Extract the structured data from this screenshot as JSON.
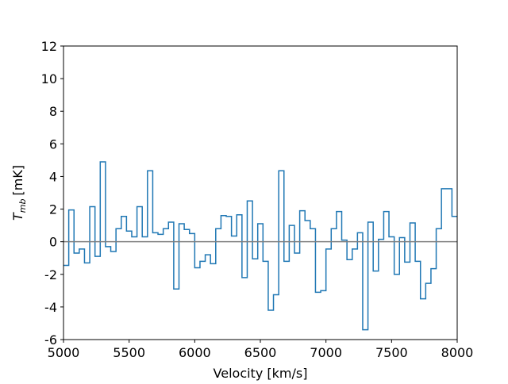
{
  "chart_data": {
    "type": "step",
    "xlabel": "Velocity [km/s]",
    "ylabel": {
      "symbol": "T",
      "subscript": "mb",
      "unit": "[mK]"
    },
    "xlim": [
      5000,
      8000
    ],
    "ylim": [
      -6,
      12
    ],
    "xticks": [
      5000,
      5500,
      6000,
      6500,
      7000,
      7500,
      8000
    ],
    "yticks": [
      -6,
      -4,
      -2,
      0,
      2,
      4,
      6,
      8,
      10,
      12
    ],
    "hline": {
      "value": 0,
      "color": "#808080"
    },
    "x": [
      5000,
      5040,
      5080,
      5120,
      5160,
      5200,
      5240,
      5280,
      5320,
      5360,
      5400,
      5440,
      5480,
      5520,
      5560,
      5600,
      5640,
      5680,
      5720,
      5760,
      5800,
      5840,
      5880,
      5920,
      5960,
      6000,
      6040,
      6080,
      6120,
      6160,
      6200,
      6240,
      6280,
      6320,
      6360,
      6400,
      6440,
      6480,
      6520,
      6560,
      6600,
      6640,
      6680,
      6720,
      6760,
      6800,
      6840,
      6880,
      6920,
      6960,
      7000,
      7040,
      7080,
      7120,
      7160,
      7200,
      7240,
      7280,
      7320,
      7360,
      7400,
      7440,
      7480,
      7520,
      7560,
      7600,
      7640,
      7680,
      7720,
      7760,
      7800,
      7840,
      7880,
      7920,
      7960
    ],
    "series": [
      {
        "color": "#1f77b4",
        "values": [
          -1.45,
          1.95,
          -0.7,
          -0.45,
          -1.3,
          2.15,
          -0.9,
          4.9,
          -0.3,
          -0.6,
          0.8,
          1.55,
          0.65,
          0.3,
          2.15,
          0.3,
          4.35,
          0.55,
          0.45,
          0.8,
          1.2,
          -2.9,
          1.1,
          0.75,
          0.5,
          -1.6,
          -1.2,
          -0.8,
          -1.35,
          0.8,
          1.6,
          1.55,
          0.35,
          1.65,
          -2.2,
          2.5,
          -1.05,
          1.1,
          -1.2,
          -4.2,
          -3.25,
          4.35,
          -1.2,
          1.0,
          -0.7,
          1.9,
          1.3,
          0.8,
          -3.1,
          -3.0,
          -0.45,
          0.8,
          1.85,
          0.1,
          -1.1,
          -0.45,
          0.55,
          -5.4,
          1.2,
          -1.8,
          0.15,
          1.85,
          0.3,
          -2.0,
          0.25,
          -1.25,
          1.15,
          -1.2,
          -3.5,
          -2.55,
          -1.65,
          0.8,
          3.25,
          3.25,
          1.55
        ]
      }
    ]
  }
}
